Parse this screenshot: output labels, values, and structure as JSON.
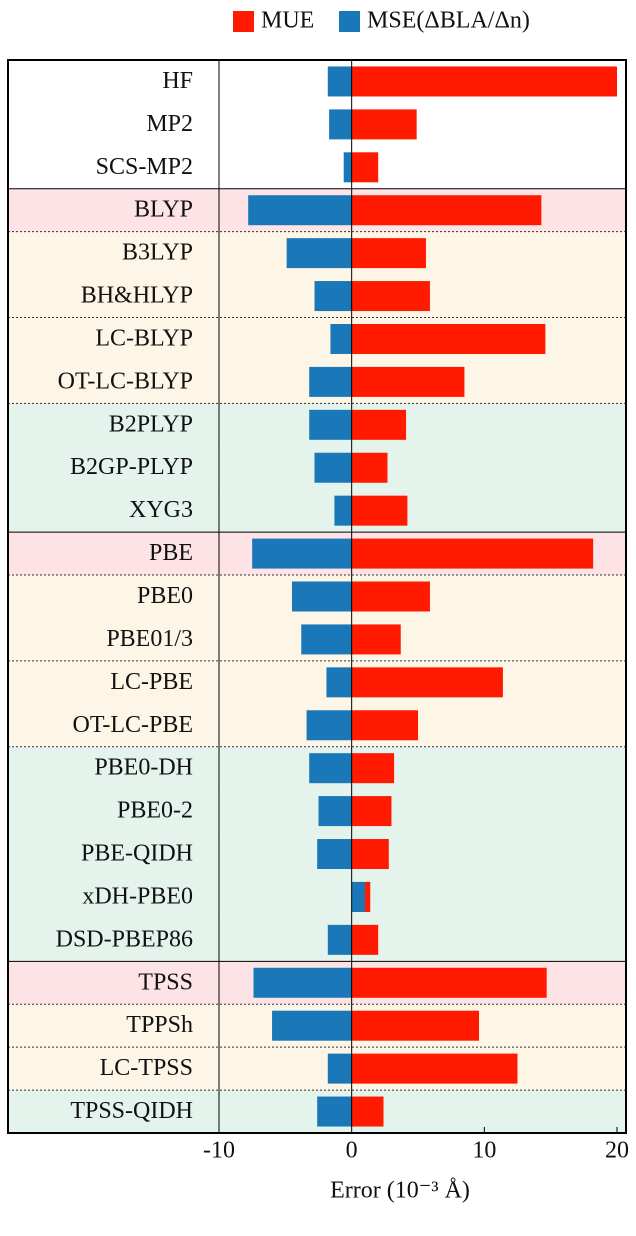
{
  "chart_data": {
    "type": "bar",
    "orientation": "horizontal",
    "x_label": "Error (10⁻³ Å)",
    "categories": [
      "HF",
      "MP2",
      "SCS-MP2",
      "BLYP",
      "B3LYP",
      "BH&HLYP",
      "LC-BLYP",
      "OT-LC-BLYP",
      "B2PLYP",
      "B2GP-PLYP",
      "XYG3",
      "PBE",
      "PBE0",
      "PBE01/3",
      "LC-PBE",
      "OT-LC-PBE",
      "PBE0-DH",
      "PBE0-2",
      "PBE-QIDH",
      "xDH-PBE0",
      "DSD-PBEP86",
      "TPSS",
      "TPPSh",
      "LC-TPSS",
      "TPSS-QIDH"
    ],
    "series": [
      {
        "name": "MUE",
        "color": "#ff1a00",
        "values": [
          20,
          4.9,
          2.0,
          14.3,
          5.6,
          5.9,
          14.6,
          8.5,
          4.1,
          2.7,
          4.2,
          18.2,
          5.9,
          3.7,
          11.4,
          5.0,
          3.2,
          3.0,
          2.8,
          1.4,
          2.0,
          14.7,
          9.6,
          12.5,
          2.4
        ]
      },
      {
        "name": "MSE(ΔBLA/Δn)",
        "color": "#1b78b8",
        "values": [
          -1.8,
          -1.7,
          -0.6,
          -7.8,
          -4.9,
          -2.8,
          -1.6,
          -3.2,
          -3.2,
          -2.8,
          -1.3,
          -7.5,
          -4.5,
          -3.8,
          -1.9,
          -3.4,
          -3.2,
          -2.5,
          -2.6,
          1.0,
          -1.8,
          -7.4,
          -6.0,
          -1.8,
          -2.6
        ]
      }
    ],
    "row_colors": [
      "#ffffff",
      "#ffffff",
      "#ffffff",
      "#fde3e5",
      "#fdf6e7",
      "#fdf6e7",
      "#fdf6e7",
      "#fdf6e7",
      "#e4f4ec",
      "#e4f4ec",
      "#e4f4ec",
      "#fde3e5",
      "#fdf6e7",
      "#fdf6e7",
      "#fdf6e7",
      "#fdf6e7",
      "#e4f4ec",
      "#e4f4ec",
      "#e4f4ec",
      "#e4f4ec",
      "#e4f4ec",
      "#fde3e5",
      "#fdf6e7",
      "#fdf6e7",
      "#e4f4ec"
    ],
    "xlim": [
      -10,
      20
    ],
    "xticks": [
      -10,
      0,
      10,
      20
    ],
    "legend": "top"
  }
}
